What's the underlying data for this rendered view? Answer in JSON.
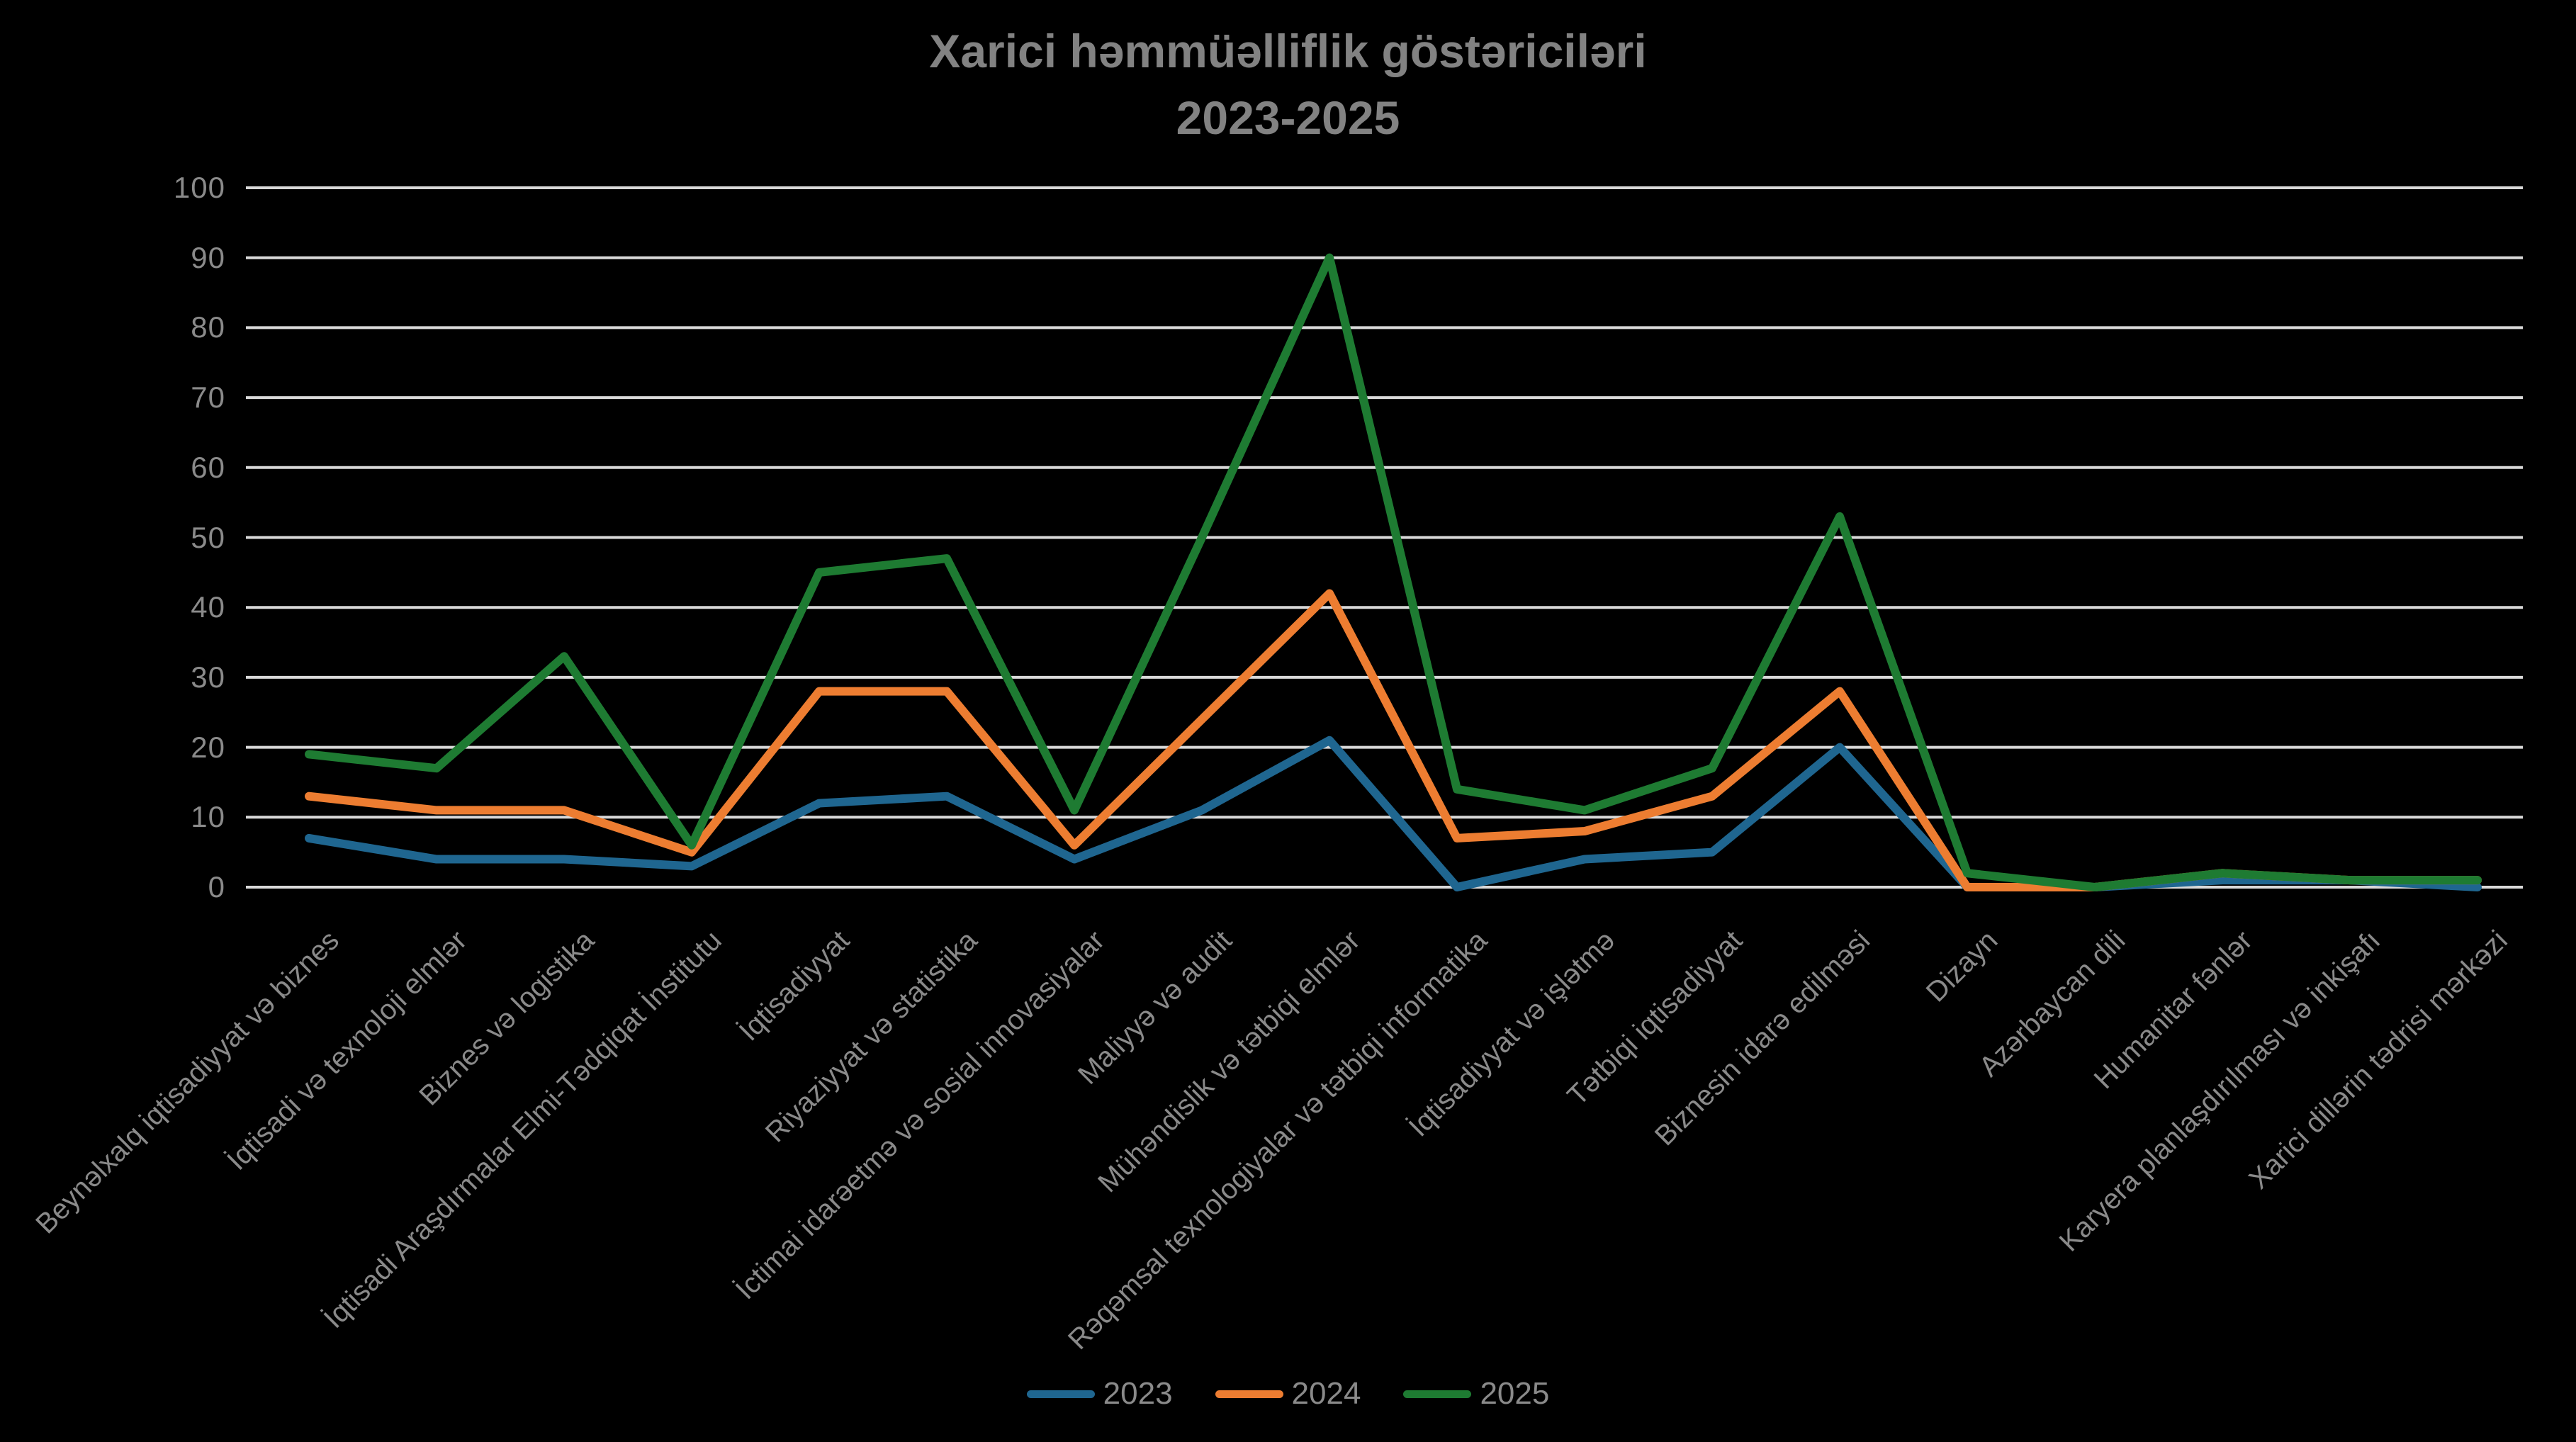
{
  "title": {
    "line1": "Xarici həmmüəlliflik göstəriciləri",
    "line2": "2023-2025"
  },
  "colors": {
    "background": "#000000",
    "grid": "#d9d9d9",
    "axis_text": "#8a8a8a",
    "title_text": "#828282",
    "series_2023": "#1f6690",
    "series_2024": "#ed7d31",
    "series_2025": "#1e7b32"
  },
  "y_axis": {
    "min": 0,
    "max": 100,
    "step": 10,
    "tick_labels": [
      "100",
      "90",
      "80",
      "70",
      "60",
      "50",
      "40",
      "30",
      "20",
      "10",
      "0"
    ]
  },
  "legend": {
    "position": "bottom",
    "items": [
      "2023",
      "2024",
      "2025"
    ]
  },
  "chart_data": {
    "type": "line",
    "title": "Xarici həmmüəlliflik göstəriciləri 2023-2025",
    "xlabel": "",
    "ylabel": "",
    "ylim": [
      0,
      100
    ],
    "grid": true,
    "legend_position": "bottom",
    "categories": [
      "Beynəlxalq iqtisadiyyat və biznes",
      "İqtisadi və texnoloji elmlər",
      "Biznes və logistika",
      "İqtisadi Araşdırmalar Elmi-Tədqiqat İnstitutu",
      "İqtisadiyyat",
      "Riyaziyyat və statistika",
      "İctimai idarəetmə və sosial innovasiyalar",
      "Maliyyə və audit",
      "Mühəndislik və tətbiqi elmlər",
      "Rəqəmsal texnologiyalar və tətbiqi informatika",
      "İqtisadiyyat və işlətmə",
      "Tətbiqi iqtisadiyyat",
      "Biznesin idarə edilməsi",
      "Dizayn",
      "Azərbaycan dili",
      "Humanitar fənlər",
      "Karyera planlaşdırılması və inkişafı",
      "Xarici dillərin tədrisi mərkəzi"
    ],
    "series": [
      {
        "name": "2023",
        "color": "#1f6690",
        "values": [
          7,
          4,
          4,
          3,
          12,
          13,
          4,
          11,
          21,
          0,
          4,
          5,
          20,
          0,
          0,
          1,
          1,
          0
        ]
      },
      {
        "name": "2024",
        "color": "#ed7d31",
        "values": [
          13,
          11,
          11,
          5,
          28,
          28,
          6,
          24,
          42,
          7,
          8,
          13,
          28,
          0,
          0,
          2,
          1,
          1
        ]
      },
      {
        "name": "2025",
        "color": "#1e7b32",
        "values": [
          19,
          17,
          33,
          6,
          45,
          47,
          11,
          50,
          90,
          14,
          11,
          17,
          53,
          2,
          0,
          2,
          1,
          1
        ]
      }
    ]
  }
}
